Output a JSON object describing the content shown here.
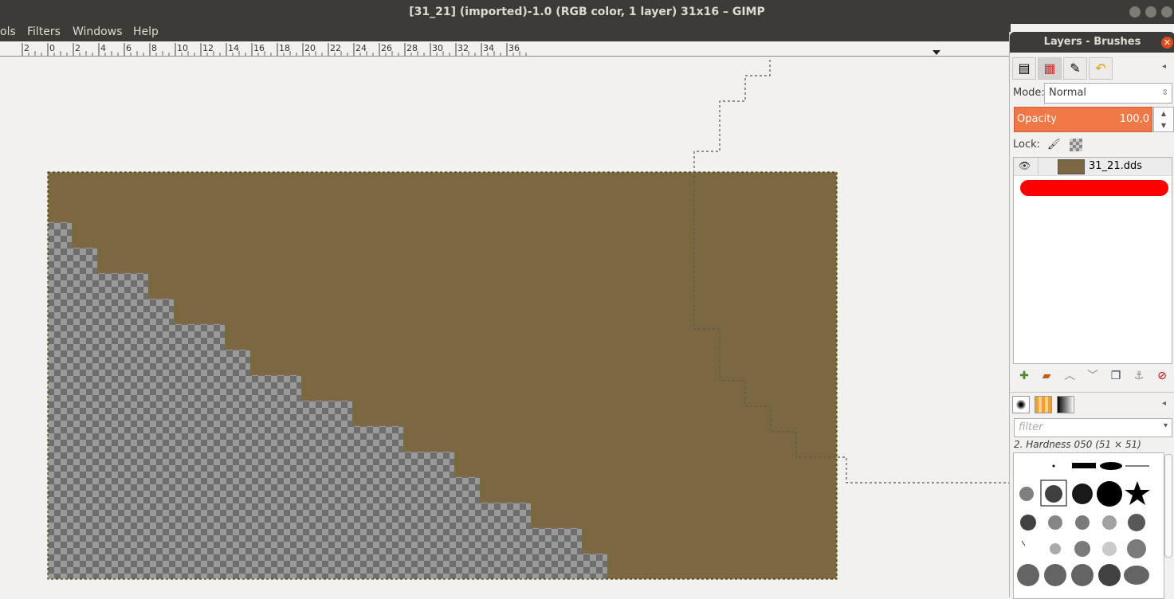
{
  "window": {
    "title": "[31_21] (imported)-1.0 (RGB color, 1 layer) 31x16 – GIMP"
  },
  "menu": [
    "ols",
    "Filters",
    "Windows",
    "Help"
  ],
  "ruler": {
    "labels": [
      "2",
      "0",
      "2",
      "4",
      "6",
      "8",
      "10",
      "12",
      "14",
      "16",
      "18",
      "20",
      "22",
      "24",
      "26",
      "28",
      "30",
      "32",
      "34",
      "36"
    ]
  },
  "image": {
    "fill_color": "#7c6840",
    "checker_dark": "#6e6e6e",
    "checker_light": "#9a9a9a"
  },
  "dock": {
    "title": "Layers - Brushes",
    "mode_label": "Mode:",
    "mode_value": "Normal",
    "opacity_label": "Opacity",
    "opacity_value": "100,0",
    "lock_label": "Lock:",
    "layer_name": "31_21.dds",
    "filter_placeholder": "filter",
    "brush_name": "2. Hardness 050 (51 × 51)"
  },
  "icons": [
    "paintbrush-icon",
    "checker-icon",
    "eye-icon",
    "new-layer-icon",
    "folder-icon",
    "up-icon",
    "down-icon",
    "duplicate-icon",
    "anchor-icon",
    "delete-icon"
  ]
}
